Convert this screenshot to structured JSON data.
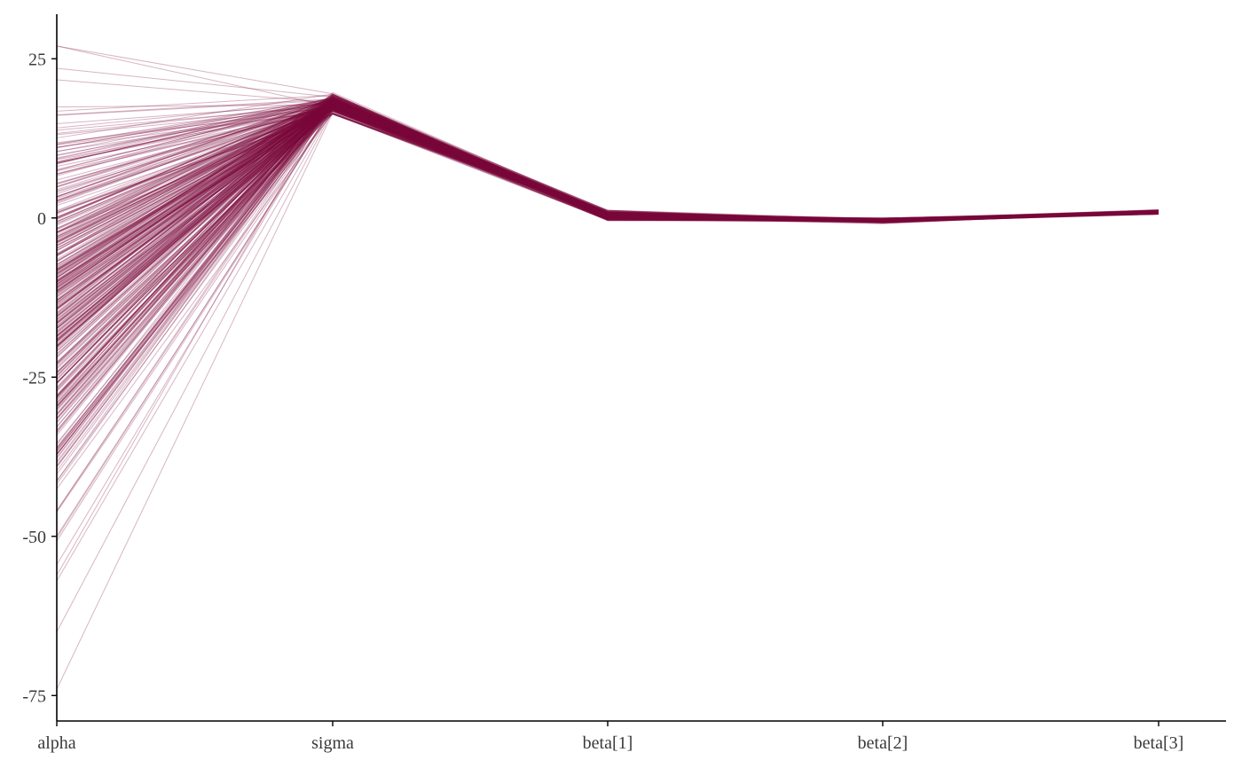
{
  "chart_data": {
    "type": "line",
    "subtype": "parallel-coordinates",
    "title": "",
    "xlabel": "",
    "ylabel": "",
    "categories": [
      "alpha",
      "sigma",
      "beta[1]",
      "beta[2]",
      "beta[3]"
    ],
    "ylim": [
      -79,
      32
    ],
    "yticks": [
      25,
      0,
      -25,
      -50,
      -75
    ],
    "ytick_labels": [
      "25",
      "0",
      "-25",
      "-50",
      "-75"
    ],
    "grid": false,
    "legend": "none",
    "color": "#7a0a3a",
    "line_opacity": 0.3,
    "n_draws": 400,
    "variable_summaries": [
      {
        "name": "alpha",
        "center": -13,
        "spread": 15,
        "min": -74,
        "max": 27
      },
      {
        "name": "sigma",
        "center": 18,
        "spread": 0.7,
        "min": 16.3,
        "max": 19.7
      },
      {
        "name": "beta[1]",
        "center": 0.4,
        "spread": 0.35,
        "min": -0.5,
        "max": 1.2
      },
      {
        "name": "beta[2]",
        "center": -0.4,
        "spread": 0.15,
        "min": -0.9,
        "max": 0.0
      },
      {
        "name": "beta[3]",
        "center": 0.9,
        "spread": 0.15,
        "min": 0.6,
        "max": 1.3
      }
    ],
    "notable_draws": [
      {
        "alpha": -74,
        "sigma": 16.5,
        "beta[1]": 0.3,
        "beta[2]": -0.4,
        "beta[3]": 0.9
      },
      {
        "alpha": -65,
        "sigma": 16.8,
        "beta[1]": 0.5,
        "beta[2]": -0.5,
        "beta[3]": 0.8
      },
      {
        "alpha": -57,
        "sigma": 17.0,
        "beta[1]": 0.2,
        "beta[2]": -0.3,
        "beta[3]": 1.0
      },
      {
        "alpha": 27,
        "sigma": 19.5,
        "beta[1]": 0.6,
        "beta[2]": -0.4,
        "beta[3]": 0.9
      },
      {
        "alpha": 23.5,
        "sigma": 19.0,
        "beta[1]": 0.4,
        "beta[2]": -0.5,
        "beta[3]": 0.8
      }
    ]
  }
}
